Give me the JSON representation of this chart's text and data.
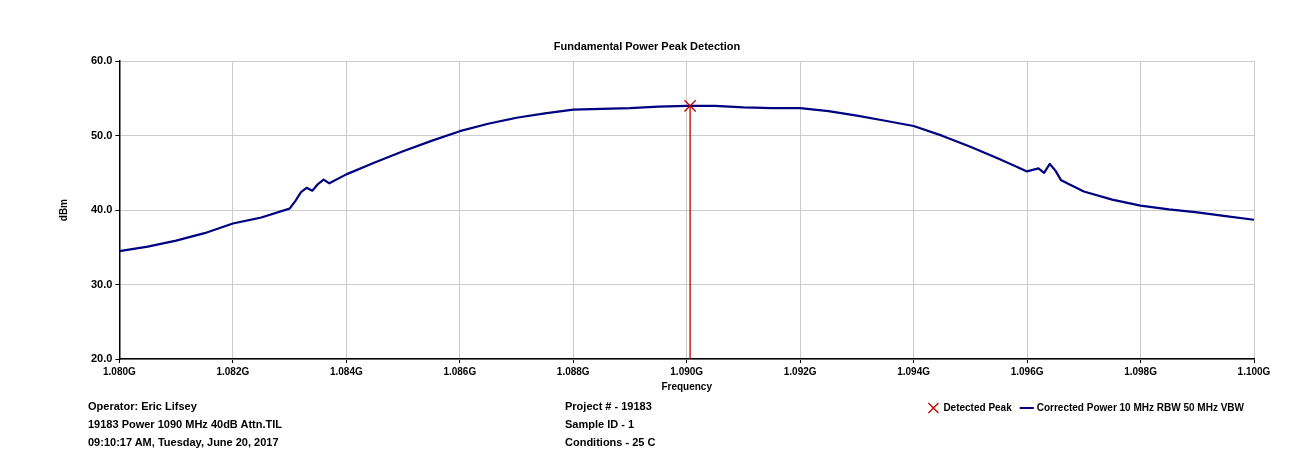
{
  "chart_data": {
    "type": "line",
    "title": "Fundamental Power Peak Detection",
    "xlabel": "Frequency",
    "ylabel": "dBm",
    "xlim": [
      1.08,
      1.1
    ],
    "xticks": [
      {
        "value": 1.08,
        "label": "1.080G"
      },
      {
        "value": 1.082,
        "label": "1.082G"
      },
      {
        "value": 1.084,
        "label": "1.084G"
      },
      {
        "value": 1.086,
        "label": "1.086G"
      },
      {
        "value": 1.088,
        "label": "1.088G"
      },
      {
        "value": 1.09,
        "label": "1.090G"
      },
      {
        "value": 1.092,
        "label": "1.092G"
      },
      {
        "value": 1.094,
        "label": "1.094G"
      },
      {
        "value": 1.096,
        "label": "1.096G"
      },
      {
        "value": 1.098,
        "label": "1.098G"
      },
      {
        "value": 1.1,
        "label": "1.100G"
      }
    ],
    "ylim": [
      20,
      60
    ],
    "yticks": [
      {
        "value": 20,
        "label": "20.0"
      },
      {
        "value": 30,
        "label": "30.0"
      },
      {
        "value": 40,
        "label": "40.0"
      },
      {
        "value": 50,
        "label": "50.0"
      },
      {
        "value": 60,
        "label": "60.0"
      }
    ],
    "grid": true,
    "legend": "bottom right",
    "line_style": "solid",
    "series": [
      {
        "name": "Detected Peak",
        "type": "lollipop",
        "marker": "cross",
        "color": "#c00000",
        "x": [
          1.09006
        ],
        "values": [
          54.0
        ]
      },
      {
        "name": "Corrected Power 10 MHz RBW 50 MHz VBW",
        "color": "#000080",
        "x": [
          1.08,
          1.0805,
          1.081,
          1.0815,
          1.082,
          1.0825,
          1.083,
          1.0831,
          1.0832,
          1.0833,
          1.0834,
          1.0835,
          1.0836,
          1.0837,
          1.084,
          1.0845,
          1.085,
          1.0855,
          1.086,
          1.0865,
          1.087,
          1.0875,
          1.088,
          1.0885,
          1.089,
          1.0895,
          1.09,
          1.0905,
          1.091,
          1.0915,
          1.092,
          1.0925,
          1.093,
          1.0935,
          1.094,
          1.0945,
          1.095,
          1.0955,
          1.096,
          1.0962,
          1.0963,
          1.0964,
          1.0965,
          1.0966,
          1.097,
          1.0975,
          1.098,
          1.0985,
          1.099,
          1.0995,
          1.1
        ],
        "values": [
          34.5,
          35.1,
          35.9,
          36.9,
          38.2,
          39.0,
          40.2,
          41.2,
          42.4,
          43.0,
          42.6,
          43.5,
          44.1,
          43.6,
          44.8,
          46.4,
          47.9,
          49.3,
          50.6,
          51.6,
          52.4,
          53.0,
          53.5,
          53.6,
          53.7,
          53.9,
          54.0,
          54.0,
          53.8,
          53.7,
          53.7,
          53.3,
          52.7,
          52.0,
          51.3,
          50.0,
          48.5,
          46.9,
          45.2,
          45.6,
          45.0,
          46.2,
          45.3,
          44.0,
          42.5,
          41.4,
          40.6,
          40.1,
          39.7,
          39.2,
          38.7
        ]
      }
    ],
    "annotations": [
      "Operator: Eric Lifsey",
      "19183 Power 1090 MHz 40dB Attn.TIL",
      "09:10:17 AM, Tuesday, June 20, 2017",
      "Project # - 19183",
      "Sample ID - 1",
      "Conditions - 25 C"
    ]
  }
}
